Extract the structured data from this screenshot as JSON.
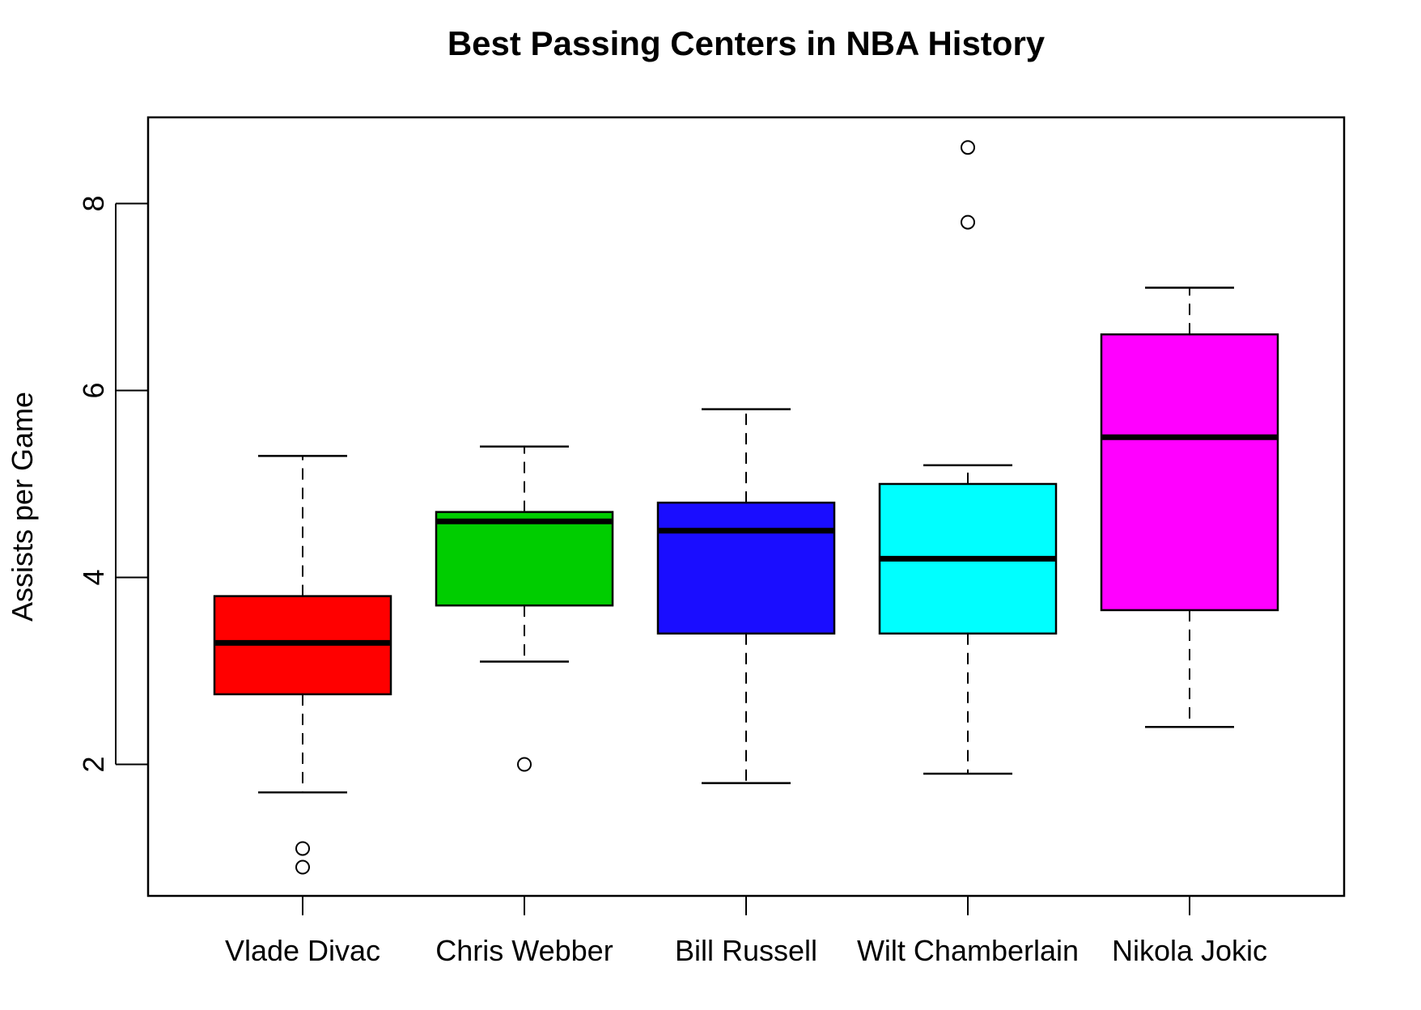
{
  "chart_data": {
    "type": "boxplot",
    "title": "Best Passing Centers in NBA History",
    "xlabel": "",
    "ylabel": "Assists per Game",
    "ylim": [
      0.6,
      8.9
    ],
    "yticks": [
      2,
      4,
      6,
      8
    ],
    "grid": false,
    "categories": [
      "Vlade Divac",
      "Chris Webber",
      "Bill Russell",
      "Wilt Chamberlain",
      "Nikola Jokic"
    ],
    "series": [
      {
        "category": "Vlade Divac",
        "color": "#ff0000",
        "whisker_low": 1.7,
        "q1": 2.75,
        "median": 3.3,
        "q3": 3.8,
        "whisker_high": 5.3,
        "outliers": [
          1.1,
          0.9
        ]
      },
      {
        "category": "Chris Webber",
        "color": "#00cd00",
        "whisker_low": 3.1,
        "q1": 3.7,
        "median": 4.6,
        "q3": 4.7,
        "whisker_high": 5.4,
        "outliers": [
          2.0
        ]
      },
      {
        "category": "Bill Russell",
        "color": "#1a0dff",
        "whisker_low": 1.8,
        "q1": 3.4,
        "median": 4.5,
        "q3": 4.8,
        "whisker_high": 5.8,
        "outliers": []
      },
      {
        "category": "Wilt Chamberlain",
        "color": "#00ffff",
        "whisker_low": 1.9,
        "q1": 3.4,
        "median": 4.2,
        "q3": 5.0,
        "whisker_high": 5.2,
        "outliers": [
          8.6,
          7.8
        ]
      },
      {
        "category": "Nikola Jokic",
        "color": "#ff00ff",
        "whisker_low": 2.4,
        "q1": 3.65,
        "median": 5.5,
        "q3": 6.6,
        "whisker_high": 7.1,
        "outliers": []
      }
    ]
  }
}
